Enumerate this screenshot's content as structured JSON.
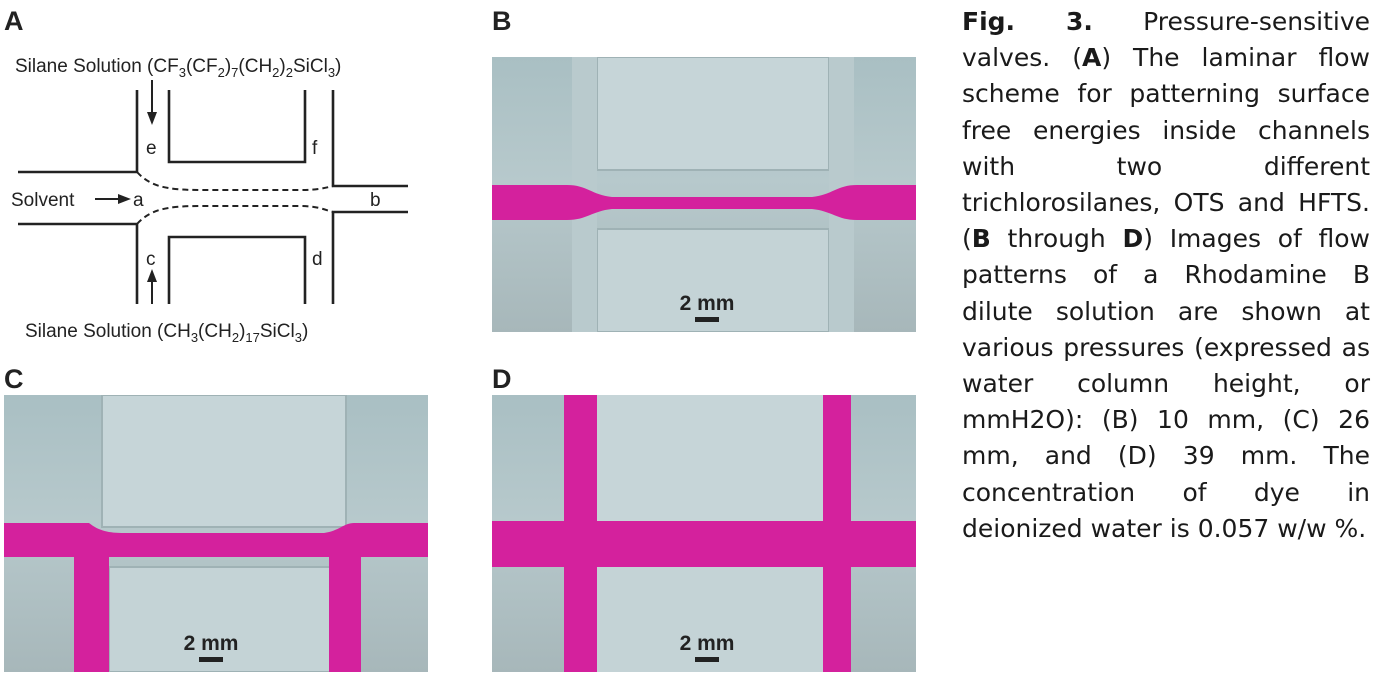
{
  "panels": {
    "a": {
      "label": "A"
    },
    "b": {
      "label": "B",
      "scale": "2 mm"
    },
    "c": {
      "label": "C",
      "scale": "2 mm"
    },
    "d": {
      "label": "D",
      "scale": "2 mm"
    }
  },
  "schematic": {
    "top_solution": "Silane Solution (CF3(CF2)7(CH2)2SiCl3)",
    "bottom_solution": "Silane Solution (CH3(CH2)17SiCl3)",
    "solvent": "Solvent",
    "ports": [
      "a",
      "b",
      "c",
      "d",
      "e",
      "f"
    ]
  },
  "caption": {
    "fig_label": "Fig. 3.",
    "title": "Pressure-sensitive valves.",
    "a_label": "A",
    "a_text": "The laminar flow scheme for patterning surface free energies inside channels with two different trichlorosilanes, OTS and HFTS.",
    "b_label": "B",
    "through": "through",
    "d_label": "D",
    "bd_text": "Images of flow patterns of a Rhodamine B dilute solution are shown at various pressures (expressed as water column height, or mmH2O): (B) 10 mm, (C) 26 mm, and (D) 39 mm. The concentration of dye in deionized water is 0.057 w/w %."
  },
  "colors": {
    "dye": "#d4219d",
    "background": "#b5c7ca"
  }
}
